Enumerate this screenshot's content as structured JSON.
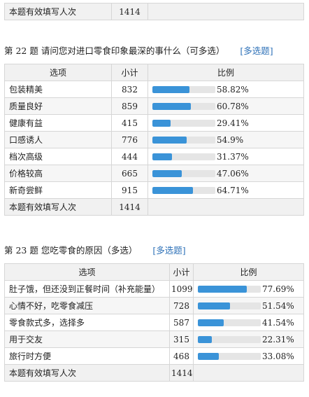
{
  "top_total": {
    "label": "本题有效填写人次",
    "value": "1414"
  },
  "q22": {
    "title": "第 22 题   请问您对进口零食印象最深的事什么（可多选）",
    "tag": "[多选题]",
    "headers": {
      "option": "选项",
      "count": "小计",
      "ratio": "比例"
    },
    "rows": [
      {
        "option": "包装精美",
        "count": "832",
        "pct": "58.82%",
        "value": 58.82
      },
      {
        "option": "质量良好",
        "count": "859",
        "pct": "60.78%",
        "value": 60.78
      },
      {
        "option": "健康有益",
        "count": "415",
        "pct": "29.41%",
        "value": 29.41
      },
      {
        "option": "口感诱人",
        "count": "776",
        "pct": "54.9%",
        "value": 54.9
      },
      {
        "option": "档次高级",
        "count": "444",
        "pct": "31.37%",
        "value": 31.37
      },
      {
        "option": "价格较高",
        "count": "665",
        "pct": "47.06%",
        "value": 47.06
      },
      {
        "option": "新奇尝鲜",
        "count": "915",
        "pct": "64.71%",
        "value": 64.71
      }
    ],
    "total": {
      "label": "本题有效填写人次",
      "value": "1414"
    }
  },
  "q23": {
    "title": "第 23 题   您吃零食的原因（多选）",
    "tag": "[多选题]",
    "headers": {
      "option": "选项",
      "count": "小计",
      "ratio": "比例"
    },
    "rows": [
      {
        "option": "肚子饿，但还没到正餐时间（补充能量）",
        "count": "1099",
        "pct": "77.69%",
        "value": 77.69
      },
      {
        "option": "心情不好，吃零食减压",
        "count": "728",
        "pct": "51.54%",
        "value": 51.54
      },
      {
        "option": "零食款式多，选择多",
        "count": "587",
        "pct": "41.54%",
        "value": 41.54
      },
      {
        "option": "用于交友",
        "count": "315",
        "pct": "22.31%",
        "value": 22.31
      },
      {
        "option": "旅行时方便",
        "count": "468",
        "pct": "33.08%",
        "value": 33.08
      }
    ],
    "total": {
      "label": "本题有效填写人次",
      "value": "1414"
    }
  },
  "colors": {
    "bar": "#3a93d8",
    "track": "#e5e5e5"
  }
}
